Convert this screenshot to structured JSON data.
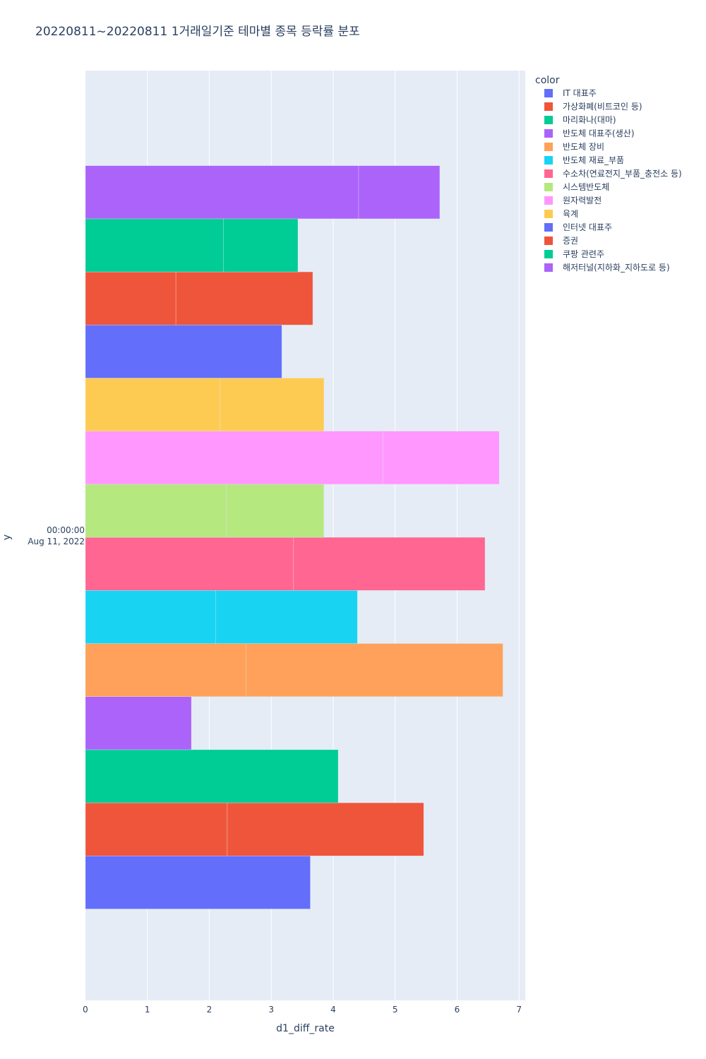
{
  "chart_data": {
    "type": "bar",
    "orientation": "horizontal",
    "barmode": "stacked",
    "title": "20220811~20220811 1거래일기준 테마별 종목 등락률 분포",
    "xlabel": "d1_diff_rate",
    "ylabel": "y",
    "xlim": [
      0,
      7.1
    ],
    "x_ticks": [
      0,
      1,
      2,
      3,
      4,
      5,
      6,
      7
    ],
    "y_tick_label": [
      "00:00:00",
      "Aug 11, 2022"
    ],
    "legend_title": "color",
    "legend_position": "top-right",
    "grid": true,
    "series": [
      {
        "name": "IT 대표주",
        "color": "#636efa",
        "segments": [
          3.63
        ]
      },
      {
        "name": "가상화폐(비트코인 등)",
        "color": "#EF553B",
        "segments": [
          2.29,
          3.17
        ]
      },
      {
        "name": "마리화나(대마)",
        "color": "#00cc96",
        "segments": [
          4.08
        ]
      },
      {
        "name": "반도체 대표주(생산)",
        "color": "#ab63fa",
        "segments": [
          1.71
        ]
      },
      {
        "name": "반도체 장비",
        "color": "#FFA15A",
        "segments": [
          2.59,
          4.15
        ]
      },
      {
        "name": "반도체 재료_부품",
        "color": "#19d3f3",
        "segments": [
          2.1,
          2.29
        ]
      },
      {
        "name": "수소차(연료전지_부품_충전소 등)",
        "color": "#FF6692",
        "segments": [
          3.36,
          3.09
        ]
      },
      {
        "name": "시스템반도체",
        "color": "#B6E880",
        "segments": [
          2.27,
          1.58
        ]
      },
      {
        "name": "원자력발전",
        "color": "#FF97FF",
        "segments": [
          4.8,
          1.88
        ]
      },
      {
        "name": "육계",
        "color": "#FECB52",
        "segments": [
          2.17,
          1.68
        ]
      },
      {
        "name": "인터넷 대표주",
        "color": "#636efa",
        "segments": [
          3.17
        ]
      },
      {
        "name": "증권",
        "color": "#EF553B",
        "segments": [
          1.46,
          2.21
        ]
      },
      {
        "name": "쿠팡 관련주",
        "color": "#00cc96",
        "segments": [
          2.23,
          1.2
        ]
      },
      {
        "name": "해저터널(지하화_지하도로 등)",
        "color": "#ab63fa",
        "segments": [
          4.41,
          1.31
        ]
      }
    ]
  }
}
